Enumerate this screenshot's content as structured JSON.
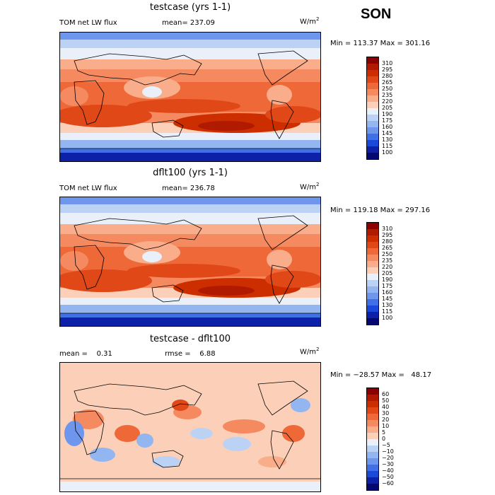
{
  "season": "SON",
  "panels": [
    {
      "title": "testcase (yrs 1-1)",
      "left_label": "TOM net LW flux",
      "stat_label": "mean= 237.09",
      "stat2_label": "",
      "units": "W/m",
      "units_sup": "2",
      "minmax": "Min = 113.37 Max = 301.16"
    },
    {
      "title": "dflt100 (yrs 1-1)",
      "left_label": "TOM net LW flux",
      "stat_label": "mean= 236.78",
      "stat2_label": "",
      "units": "W/m",
      "units_sup": "2",
      "minmax": "Min = 119.18 Max = 297.16"
    },
    {
      "title": "testcase - dflt100",
      "left_label": "",
      "stat_label": "mean =    0.31",
      "stat2_label": "rmse =    6.88",
      "units": "W/m",
      "units_sup": "2",
      "minmax": "Min = −28.57 Max =   48.17"
    }
  ],
  "chart_data": [
    {
      "type": "heatmap",
      "title": "testcase (yrs 1-1)",
      "variable": "TOM net LW flux",
      "units": "W/m2",
      "mean": 237.09,
      "min": 113.37,
      "max": 301.16,
      "colorbar_levels": [
        "310",
        "295",
        "280",
        "265",
        "250",
        "235",
        "220",
        "205",
        "190",
        "175",
        "160",
        "145",
        "130",
        "115",
        "100"
      ],
      "colorbar_colors": [
        "#8b0000",
        "#b01a00",
        "#cc2e00",
        "#e04818",
        "#ee6838",
        "#f58a60",
        "#f9ad8a",
        "#fcd0b8",
        "#eaf0fa",
        "#bcd2f4",
        "#94b6f0",
        "#6e96ec",
        "#3f70e6",
        "#1a48d8",
        "#0d20a8",
        "#050870"
      ]
    },
    {
      "type": "heatmap",
      "title": "dflt100 (yrs 1-1)",
      "variable": "TOM net LW flux",
      "units": "W/m2",
      "mean": 236.78,
      "min": 119.18,
      "max": 297.16,
      "colorbar_levels": [
        "310",
        "295",
        "280",
        "265",
        "250",
        "235",
        "220",
        "205",
        "190",
        "175",
        "160",
        "145",
        "130",
        "115",
        "100"
      ],
      "colorbar_colors": [
        "#8b0000",
        "#b01a00",
        "#cc2e00",
        "#e04818",
        "#ee6838",
        "#f58a60",
        "#f9ad8a",
        "#fcd0b8",
        "#eaf0fa",
        "#bcd2f4",
        "#94b6f0",
        "#6e96ec",
        "#3f70e6",
        "#1a48d8",
        "#0d20a8",
        "#050870"
      ]
    },
    {
      "type": "heatmap",
      "title": "testcase - dflt100",
      "units": "W/m2",
      "mean": 0.31,
      "rmse": 6.88,
      "min": -28.57,
      "max": 48.17,
      "colorbar_levels": [
        "60",
        "50",
        "40",
        "30",
        "20",
        "10",
        "5",
        "0",
        "−5",
        "−10",
        "−20",
        "−30",
        "−40",
        "−50",
        "−60"
      ],
      "colorbar_colors": [
        "#8b0000",
        "#b01a00",
        "#cc2e00",
        "#e04818",
        "#ee6838",
        "#f58a60",
        "#f9ad8a",
        "#fcd0b8",
        "#eaf0fa",
        "#bcd2f4",
        "#94b6f0",
        "#6e96ec",
        "#3f70e6",
        "#1a48d8",
        "#0d20a8",
        "#050870"
      ]
    }
  ]
}
